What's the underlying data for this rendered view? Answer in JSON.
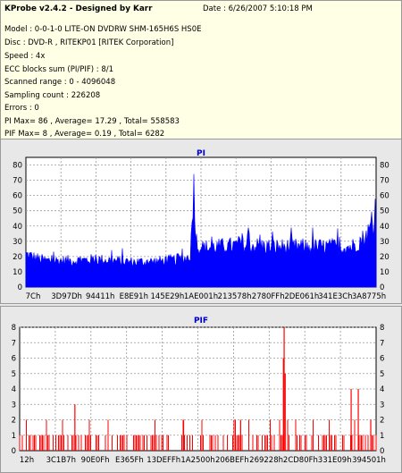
{
  "info": {
    "title": "KProbe v2.4.2 - Designed by Karr",
    "date": "Date : 6/26/2007 5:10:18 PM",
    "lines": [
      "Model : 0-0-1-0 LITE-ON DVDRW SHM-165H6S HS0E",
      "Disc : DVD-R , RITEKP01 [RITEK Corporation]",
      "Speed : 4x",
      "ECC blocks sum (PI/PIF) : 8/1",
      "Scanned range : 0 - 4096048",
      "Sampling count : 226208",
      "Errors : 0",
      "PI Max= 86 , Average= 17.29 , Total= 558583",
      "PIF Max= 8 , Average= 0.19 , Total= 6282"
    ]
  },
  "colors": {
    "pi": "#0000ff",
    "pif": "#ff0000",
    "grid": "#9a9a9a",
    "panel": "#ffffff",
    "title": "#0000cc"
  },
  "chart_data": [
    {
      "type": "area",
      "title": "PI",
      "categories": [
        "7Ch",
        "3D97Dh",
        "94411h",
        "E8E91h",
        "145E29h",
        "1AE001h",
        "213578h",
        "2780FFh",
        "2DE061h",
        "341E3Ch",
        "3A8775h"
      ],
      "ylim": [
        0,
        85
      ],
      "yticks": [
        0,
        10,
        20,
        30,
        40,
        50,
        60,
        70,
        80
      ],
      "grid": true,
      "series": [
        {
          "envelope_x": [
            0,
            0.02,
            0.04,
            0.06,
            0.1,
            0.15,
            0.2,
            0.25,
            0.3,
            0.35,
            0.4,
            0.44,
            0.46,
            0.47,
            0.475,
            0.48,
            0.485,
            0.49,
            0.5,
            0.55,
            0.6,
            0.65,
            0.7,
            0.75,
            0.8,
            0.85,
            0.9,
            0.93,
            0.95,
            0.97,
            0.98,
            1.0
          ],
          "envelope_y": [
            26,
            24,
            22,
            21,
            21,
            21,
            22,
            21,
            20,
            20,
            21,
            22,
            23,
            26,
            55,
            86,
            40,
            34,
            31,
            32,
            33,
            33,
            32,
            32,
            32,
            32,
            32,
            32,
            36,
            40,
            45,
            52
          ]
        }
      ]
    },
    {
      "type": "bar",
      "title": "PIF",
      "categories": [
        "12h",
        "3C1B7h",
        "90E0Fh",
        "E365Fh",
        "13DEFFh",
        "1A2500h",
        "206BEFh",
        "269228h",
        "2CD80Fh",
        "331E09h",
        "394501h"
      ],
      "ylim": [
        0,
        8
      ],
      "yticks": [
        0,
        1,
        2,
        3,
        4,
        5,
        6,
        7,
        8
      ],
      "grid": true,
      "spikes": [
        {
          "x": 0.155,
          "y": 3
        },
        {
          "x": 0.46,
          "y": 2
        },
        {
          "x": 0.62,
          "y": 2
        },
        {
          "x": 0.74,
          "y": 6
        },
        {
          "x": 0.742,
          "y": 8
        },
        {
          "x": 0.745,
          "y": 5
        },
        {
          "x": 0.93,
          "y": 4
        },
        {
          "x": 0.95,
          "y": 4
        },
        {
          "x": 0.985,
          "y": 2
        }
      ]
    }
  ]
}
